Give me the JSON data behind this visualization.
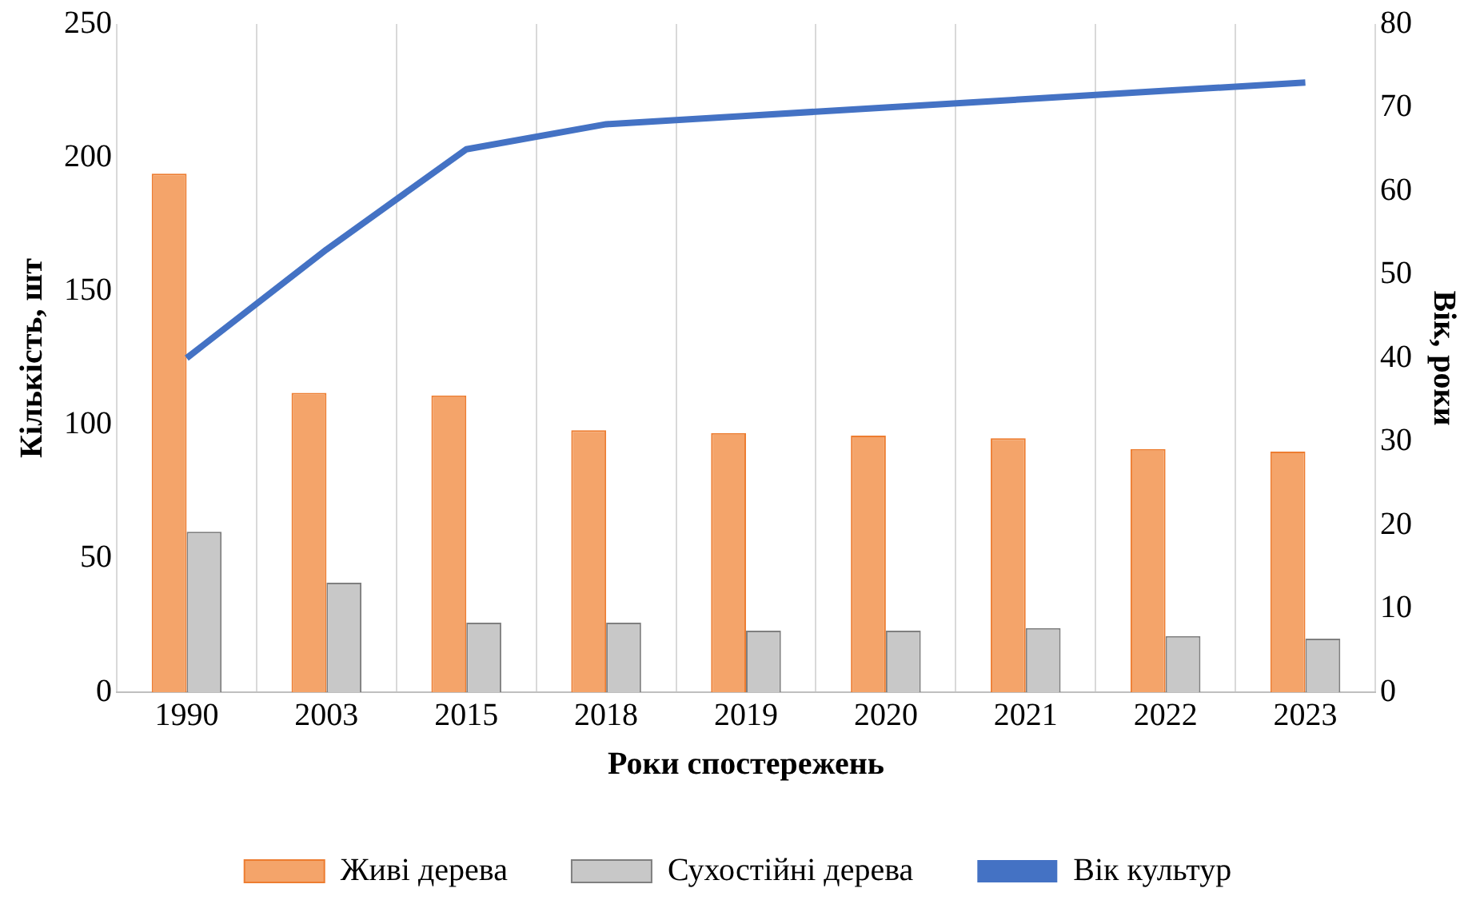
{
  "chart_data": {
    "type": "bar",
    "xlabel": "Роки спостережень",
    "ylabel": "Кількість, шт",
    "y2label": "Вік, роки",
    "categories": [
      "1990",
      "2003",
      "2015",
      "2018",
      "2019",
      "2020",
      "2021",
      "2022",
      "2023"
    ],
    "series": [
      {
        "name": "Живі дерева",
        "color": "#f4a46a",
        "values": [
          194,
          112,
          111,
          98,
          97,
          96,
          95,
          91,
          90
        ]
      },
      {
        "name": "Сухостійні дерева",
        "color": "#c8c8c8",
        "values": [
          60,
          41,
          26,
          26,
          23,
          23,
          24,
          21,
          20
        ]
      },
      {
        "name": "Вік культур",
        "type": "line",
        "axis": "y2",
        "color": "#4472c4",
        "values": [
          40,
          53,
          65,
          68,
          69,
          70,
          71,
          72,
          73
        ]
      }
    ],
    "ylim": [
      0,
      250
    ],
    "yticks": [
      0,
      50,
      100,
      150,
      200,
      250
    ],
    "y2lim": [
      0,
      80
    ],
    "y2ticks": [
      0,
      10,
      20,
      30,
      40,
      50,
      60,
      70,
      80
    ],
    "grid": "x",
    "legend": "bottom",
    "marker": "none"
  }
}
